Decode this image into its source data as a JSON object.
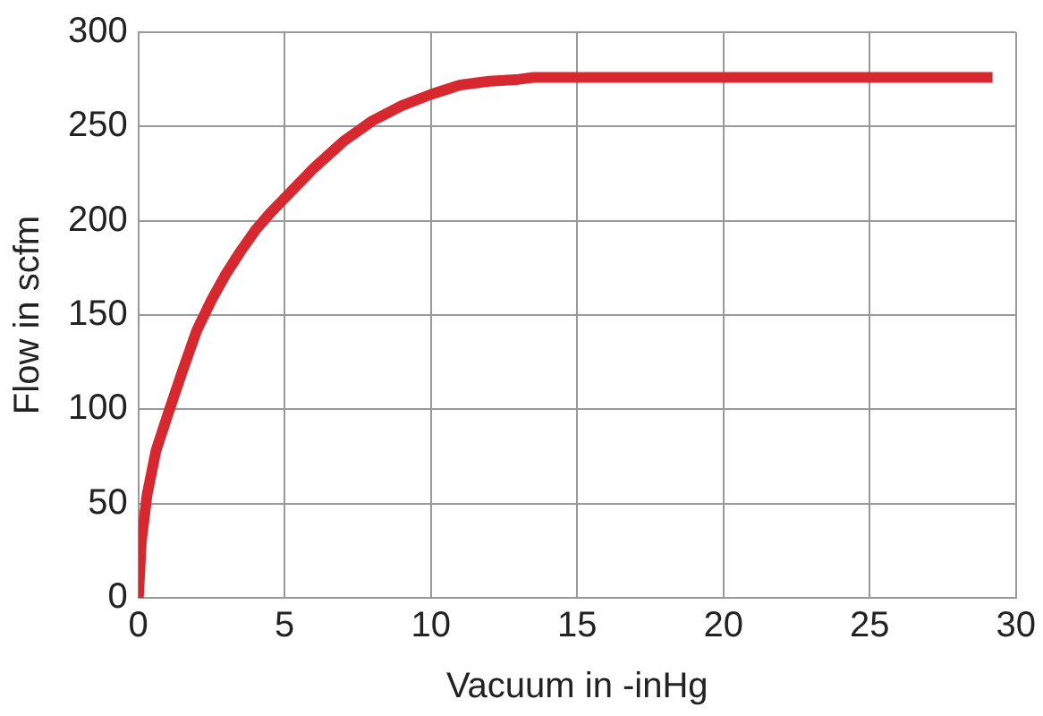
{
  "chart_data": {
    "type": "line",
    "xlabel": "Vacuum in -inHg",
    "ylabel": "Flow in scfm",
    "x": [
      0,
      0.1,
      0.3,
      0.6,
      1,
      1.5,
      2,
      2.5,
      3,
      3.5,
      4,
      4.5,
      5,
      6,
      7,
      8,
      9,
      10,
      11,
      12,
      13,
      13.5,
      15,
      20,
      25,
      29.2
    ],
    "series": [
      {
        "color": "#d7282f",
        "values": [
          0,
          30,
          55,
          78,
          97,
          120,
          142,
          158,
          172,
          184,
          195,
          204,
          212,
          228,
          242,
          253,
          261,
          267,
          272,
          274,
          275,
          276,
          276,
          276,
          276,
          276
        ]
      }
    ],
    "xlim": [
      0,
      30
    ],
    "xticks": [
      0,
      5,
      10,
      15,
      20,
      25,
      30
    ],
    "ylim": [
      0,
      300
    ],
    "yticks": [
      0,
      50,
      100,
      150,
      200,
      250,
      300
    ],
    "grid": true,
    "legend": false,
    "marker": "none",
    "line_style": "solid"
  }
}
